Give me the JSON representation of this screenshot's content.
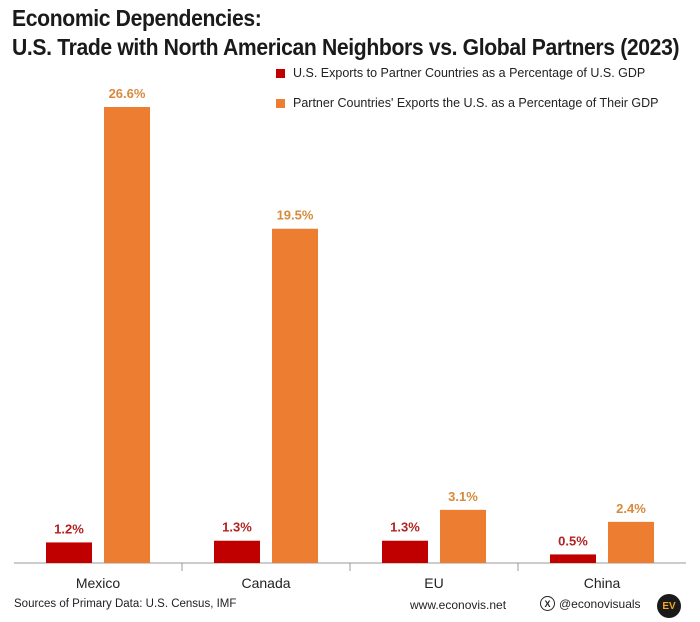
{
  "title_line1": "Economic Dependencies:",
  "title_line2": "U.S. Trade with North American Neighbors vs. Global Partners (2023)",
  "colors": {
    "us_exports": "#c00000",
    "partner_exports": "#ed7d31",
    "value_label_us": "#b22222",
    "value_label_partner": "#d68a3c",
    "axis": "#999999"
  },
  "chart_data": {
    "type": "bar",
    "categories": [
      "Mexico",
      "Canada",
      "EU",
      "China"
    ],
    "series": [
      {
        "name": "U.S. Exports to Partner Countries as a Percentage of U.S. GDP",
        "values": [
          1.2,
          1.3,
          1.3,
          0.5
        ],
        "labels": [
          "1.2%",
          "1.3%",
          "1.3%",
          "0.5%"
        ]
      },
      {
        "name": "Partner Countries' Exports the U.S. as a Percentage of Their GDP",
        "values": [
          26.6,
          19.5,
          3.1,
          2.4
        ],
        "labels": [
          "26.6%",
          "19.5%",
          "3.1%",
          "2.4%"
        ]
      }
    ],
    "ylim": [
      0,
      26.6
    ],
    "legend_position": "top-right",
    "grid": false
  },
  "footer": {
    "sources": "Sources of Primary Data: U.S. Census, IMF",
    "website": "www.econovis.net",
    "social_icon_glyph": "X",
    "social_handle": "@econovisuals",
    "logo_text": "EV"
  }
}
